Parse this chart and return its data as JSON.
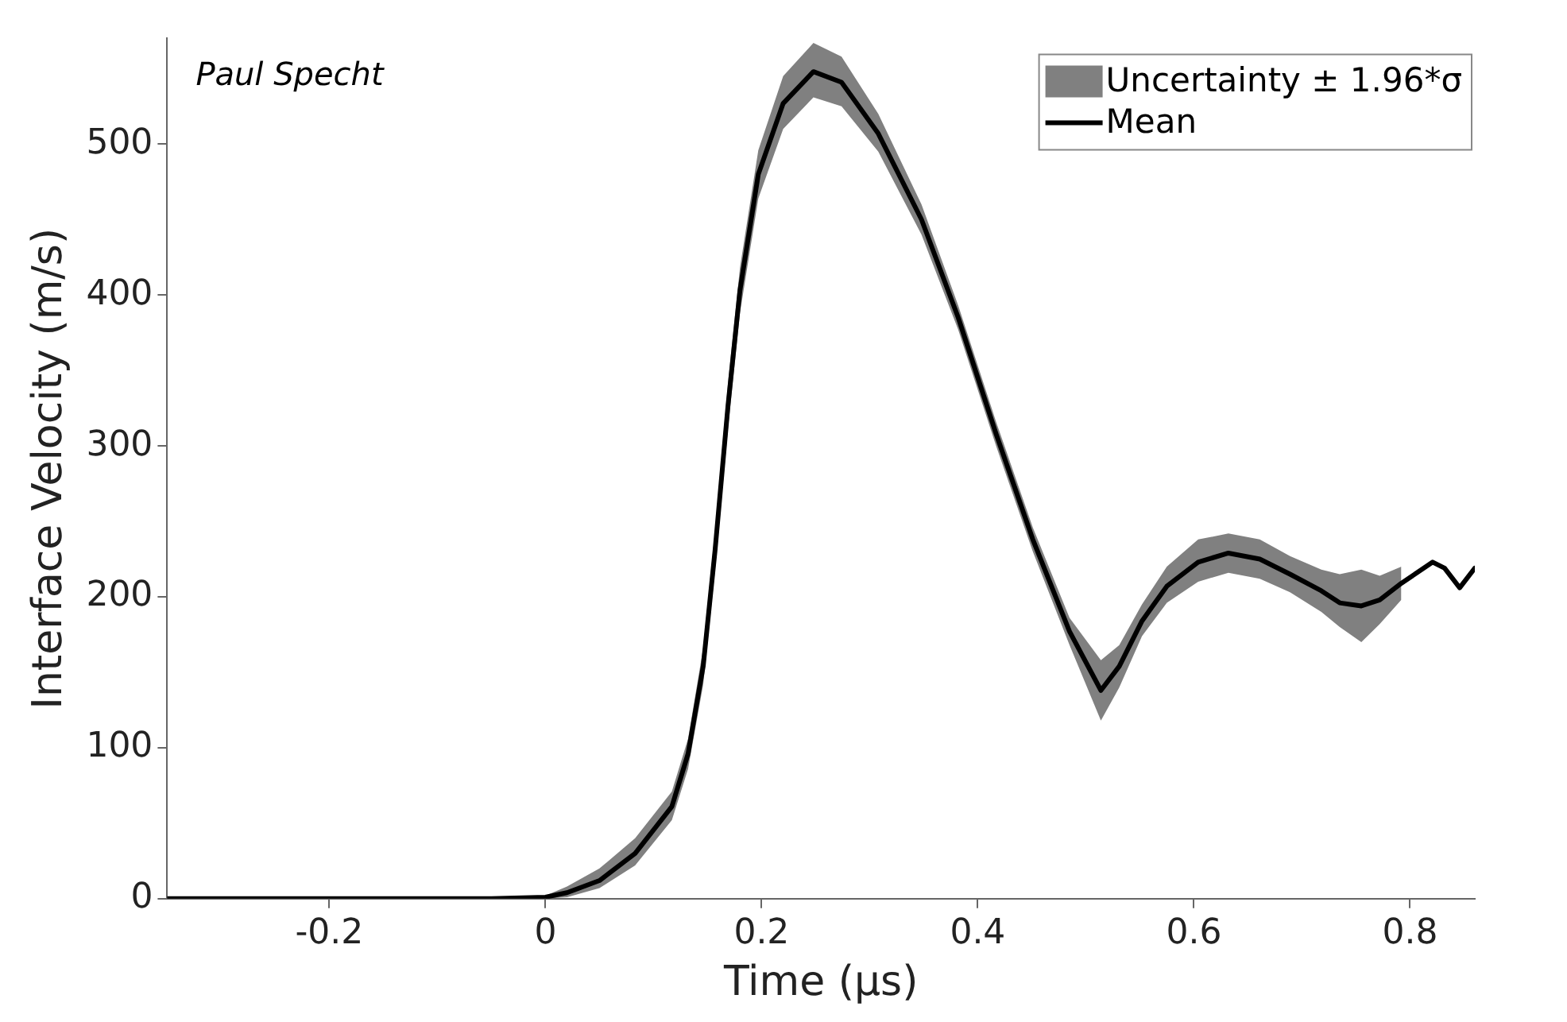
{
  "chart_data": {
    "type": "line",
    "xlabel": "Time (μs)",
    "ylabel": "Interface Velocity (m/s)",
    "annotations": [
      "Paul Specht",
      "Uncertainty ± 1.96*σ"
    ],
    "x": [
      -0.35,
      -0.2,
      -0.05,
      0,
      0.02,
      0.05,
      0.083,
      0.117,
      0.132,
      0.146,
      0.157,
      0.169,
      0.18,
      0.197,
      0.22,
      0.248,
      0.274,
      0.308,
      0.348,
      0.382,
      0.417,
      0.451,
      0.485,
      0.514,
      0.531,
      0.552,
      0.575,
      0.604,
      0.632,
      0.661,
      0.689,
      0.718,
      0.735,
      0.755,
      0.772,
      0.792,
      0.821,
      0.832,
      0.846,
      0.86
    ],
    "series": [
      {
        "name": "Mean",
        "color": "#000000",
        "values": [
          0,
          0,
          0,
          1,
          4,
          12,
          30,
          61,
          96,
          154,
          231,
          327,
          403,
          480,
          527,
          548,
          541,
          507,
          450,
          385,
          308,
          238,
          177,
          138,
          154,
          184,
          207,
          223,
          229,
          225,
          215,
          204,
          196,
          194,
          198,
          209,
          223,
          219,
          206,
          219
        ],
        "lower": [
          0,
          0,
          0,
          0,
          1,
          7,
          22,
          52,
          86,
          142,
          218,
          312,
          388,
          464,
          510,
          531,
          525,
          495,
          440,
          377,
          300,
          230,
          168,
          118,
          140,
          174,
          196,
          210,
          216,
          212,
          203,
          190,
          180,
          170,
          182,
          198,
          null,
          null,
          null,
          null
        ],
        "upper": [
          0,
          1,
          1,
          2,
          8,
          20,
          40,
          71,
          106,
          166,
          244,
          342,
          418,
          496,
          545,
          567,
          558,
          520,
          460,
          393,
          316,
          246,
          186,
          158,
          168,
          195,
          220,
          238,
          242,
          238,
          227,
          218,
          215,
          218,
          214,
          220,
          null,
          null,
          null,
          null
        ]
      }
    ],
    "xlim": [
      -0.35,
      0.86
    ],
    "xticks": [
      -0.2,
      0,
      0.2,
      0.4,
      0.6,
      0.8
    ],
    "ylim": [
      0,
      570
    ],
    "yticks": [
      0,
      100,
      200,
      300,
      400,
      500
    ],
    "grid": false,
    "legend": "top right",
    "marker": "none",
    "line_style": "solid"
  }
}
